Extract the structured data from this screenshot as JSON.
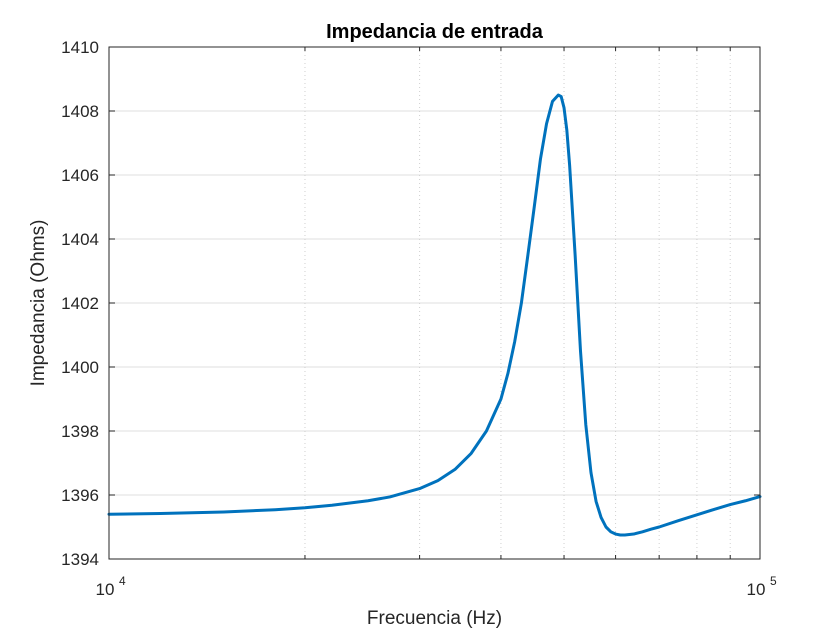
{
  "chart_data": {
    "type": "line",
    "title": "Impedancia de entrada",
    "xlabel": "Frecuencia (Hz)",
    "ylabel": "Impedancia (Ohms)",
    "xscale": "log",
    "xlim": [
      10000,
      100000
    ],
    "ylim": [
      1394,
      1410
    ],
    "x_ticks": [
      {
        "value": 10000,
        "base": "10",
        "exp": "4"
      },
      {
        "value": 100000,
        "base": "10",
        "exp": "5"
      }
    ],
    "y_ticks": [
      "1394",
      "1396",
      "1398",
      "1400",
      "1402",
      "1404",
      "1406",
      "1408",
      "1410"
    ],
    "grid": true,
    "line_color": "#0072BD",
    "series": [
      {
        "x": [
          10000,
          12000,
          15000,
          18000,
          20000,
          22000,
          25000,
          27000,
          30000,
          32000,
          34000,
          36000,
          38000,
          40000,
          41000,
          42000,
          43000,
          44000,
          45000,
          46000,
          47000,
          48000,
          49000,
          49500,
          50000,
          50500,
          51000,
          52000,
          53000,
          54000,
          55000,
          56000,
          57000,
          58000,
          59000,
          60000,
          61000,
          62000,
          64000,
          66000,
          68000,
          70000,
          75000,
          80000,
          85000,
          90000,
          95000,
          100000
        ],
        "y": [
          1395.4,
          1395.42,
          1395.47,
          1395.54,
          1395.6,
          1395.68,
          1395.82,
          1395.94,
          1396.2,
          1396.45,
          1396.8,
          1397.3,
          1398.0,
          1399.0,
          1399.8,
          1400.8,
          1402.0,
          1403.5,
          1405.0,
          1406.5,
          1407.6,
          1408.3,
          1408.5,
          1408.45,
          1408.1,
          1407.4,
          1406.3,
          1403.5,
          1400.5,
          1398.2,
          1396.7,
          1395.8,
          1395.3,
          1395.0,
          1394.85,
          1394.78,
          1394.75,
          1394.75,
          1394.78,
          1394.85,
          1394.93,
          1395.0,
          1395.2,
          1395.38,
          1395.55,
          1395.7,
          1395.82,
          1395.95
        ]
      }
    ]
  }
}
